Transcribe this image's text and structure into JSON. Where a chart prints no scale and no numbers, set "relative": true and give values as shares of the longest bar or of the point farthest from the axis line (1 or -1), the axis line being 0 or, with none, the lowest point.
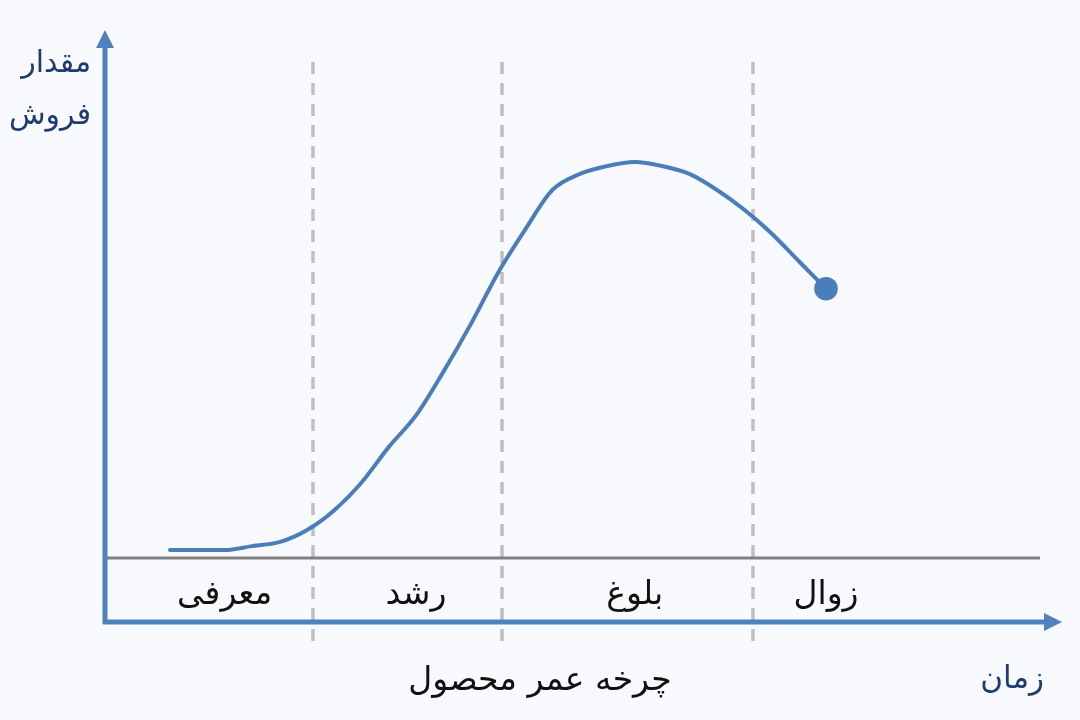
{
  "chart_data": {
    "type": "line",
    "title": "چرخه عمر محصول",
    "xlabel": "زمان",
    "ylabel": "مقدار فروش",
    "relative": true,
    "categories": [
      null,
      null,
      "معرفی",
      null,
      null,
      null,
      null,
      null,
      null,
      "رشد",
      null,
      null,
      null,
      null,
      null,
      null,
      null,
      "بلوغ",
      null,
      null,
      null,
      null,
      null,
      null,
      "زوال"
    ],
    "series": [
      {
        "color": "#4a7ebb",
        "values": [
          0.02,
          0.02,
          0.02,
          0.03,
          0.04,
          0.07,
          0.12,
          0.19,
          0.28,
          0.36,
          0.47,
          0.59,
          0.72,
          0.83,
          0.93,
          0.97,
          0.99,
          1,
          0.99,
          0.97,
          0.93,
          0.88,
          0.82,
          0.75,
          0.68
        ]
      },
      {
        "type": "scatter",
        "color": "#4a7ebb",
        "marker": "circle",
        "values": [
          null,
          null,
          null,
          null,
          null,
          null,
          null,
          null,
          null,
          null,
          null,
          null,
          null,
          null,
          null,
          null,
          null,
          null,
          null,
          null,
          null,
          null,
          null,
          null,
          0.68
        ]
      }
    ]
  }
}
